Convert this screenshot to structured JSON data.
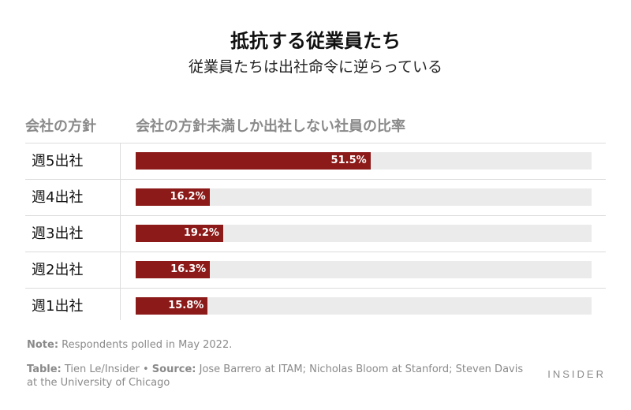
{
  "header": {
    "title": "抵抗する従業員たち",
    "subtitle": "従業員たちは出社命令に逆らっている"
  },
  "columns": {
    "left": "会社の方針",
    "right": "会社の方針未満しか出社しない社員の比率"
  },
  "chart_data": {
    "type": "bar",
    "orientation": "horizontal",
    "title": "抵抗する従業員たち",
    "subtitle": "従業員たちは出社命令に逆らっている",
    "categories": [
      "週5出社",
      "週4出社",
      "週3出社",
      "週2出社",
      "週1出社"
    ],
    "values": [
      51.5,
      16.2,
      19.2,
      16.3,
      15.8
    ],
    "value_labels": [
      "51.5%",
      "16.2%",
      "19.2%",
      "16.3%",
      "15.8%"
    ],
    "xlim": [
      0,
      100
    ],
    "bar_color": "#8b1a18",
    "track_color": "#ebebeb"
  },
  "footer": {
    "note_label": "Note:",
    "note_text": " Respondents polled in May 2022.",
    "table_label": "Table:",
    "table_text": " Tien Le/Insider • ",
    "source_label": "Source:",
    "source_text": " Jose Barrero at ITAM; Nicholas Bloom at Stanford; Steven Davis at the University of Chicago",
    "logo": "INSIDER"
  }
}
